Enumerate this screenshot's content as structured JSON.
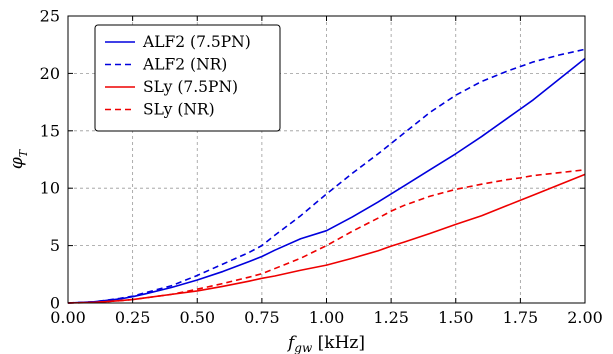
{
  "chart_data": {
    "type": "line",
    "xlabel": "f_gw [kHz]",
    "xlabel_main": "f",
    "xlabel_sub": "gw",
    "xlabel_unit": " [kHz]",
    "ylabel_main": "φ",
    "ylabel_sub": "T",
    "xlim": [
      0,
      2.0
    ],
    "ylim": [
      0,
      25
    ],
    "x_ticks": [
      0.0,
      0.25,
      0.5,
      0.75,
      1.0,
      1.25,
      1.5,
      1.75,
      2.0
    ],
    "x_tick_labels": [
      "0.00",
      "0.25",
      "0.50",
      "0.75",
      "1.00",
      "1.25",
      "1.50",
      "1.75",
      "2.00"
    ],
    "y_ticks": [
      0,
      5,
      10,
      15,
      20,
      25
    ],
    "y_tick_labels": [
      "0",
      "5",
      "10",
      "15",
      "20",
      "25"
    ],
    "grid": true,
    "legend_position": "top-left",
    "colors": {
      "blue": "#0000dd",
      "red": "#ee0000"
    },
    "x": [
      0.0,
      0.1,
      0.2,
      0.25,
      0.3,
      0.4,
      0.5,
      0.6,
      0.7,
      0.75,
      0.8,
      0.9,
      1.0,
      1.1,
      1.2,
      1.25,
      1.3,
      1.4,
      1.5,
      1.6,
      1.7,
      1.75,
      1.8,
      1.9,
      2.0
    ],
    "series": [
      {
        "name": "ALF2 (7.5PN)",
        "color": "blue",
        "dash": "solid",
        "values": [
          0,
          0.1,
          0.35,
          0.55,
          0.8,
          1.35,
          2.0,
          2.75,
          3.6,
          4.05,
          4.6,
          5.6,
          6.3,
          7.5,
          8.8,
          9.5,
          10.2,
          11.6,
          13.0,
          14.5,
          16.1,
          16.9,
          17.7,
          19.5,
          21.3
        ]
      },
      {
        "name": "ALF2 (NR)",
        "color": "blue",
        "dash": "dashed",
        "values": [
          0,
          0.1,
          0.4,
          0.6,
          0.9,
          1.5,
          2.4,
          3.4,
          4.4,
          5.0,
          5.9,
          7.6,
          9.5,
          11.3,
          13.0,
          13.9,
          14.8,
          16.6,
          18.1,
          19.3,
          20.2,
          20.6,
          21.0,
          21.6,
          22.1
        ]
      },
      {
        "name": "SLy (7.5PN)",
        "color": "red",
        "dash": "solid",
        "values": [
          0,
          0.05,
          0.2,
          0.3,
          0.45,
          0.75,
          1.05,
          1.45,
          1.9,
          2.15,
          2.35,
          2.85,
          3.3,
          3.9,
          4.55,
          4.95,
          5.3,
          6.05,
          6.85,
          7.6,
          8.5,
          8.95,
          9.4,
          10.3,
          11.2
        ]
      },
      {
        "name": "SLy (NR)",
        "color": "red",
        "dash": "dashed",
        "values": [
          0,
          0.05,
          0.2,
          0.3,
          0.45,
          0.75,
          1.2,
          1.7,
          2.25,
          2.55,
          3.0,
          3.9,
          5.0,
          6.25,
          7.4,
          8.0,
          8.5,
          9.3,
          9.9,
          10.35,
          10.75,
          10.9,
          11.1,
          11.35,
          11.6
        ]
      }
    ]
  }
}
